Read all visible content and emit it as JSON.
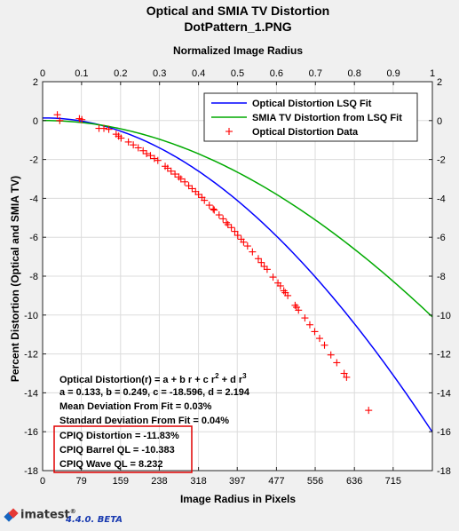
{
  "chart_data": {
    "type": "line",
    "title": "Optical and SMIA TV Distortion",
    "subtitle": "DotPattern_1.PNG",
    "xlabel": "Image Radius in Pixels",
    "ylabel": "Percent Distortion (Optical and SMIA TV)",
    "top_xlabel": "Normalized Image Radius",
    "xlim": [
      0,
      795
    ],
    "ylim": [
      -18,
      2
    ],
    "top_xlim": [
      0,
      1
    ],
    "x_ticks": [
      0,
      79,
      159,
      238,
      318,
      397,
      477,
      556,
      636,
      715
    ],
    "top_x_ticks": [
      "0",
      "0.1",
      "0.2",
      "0.3",
      "0.4",
      "0.5",
      "0.6",
      "0.7",
      "0.8",
      "0.9",
      "1"
    ],
    "y_ticks": [
      2,
      0,
      -2,
      -4,
      -6,
      -8,
      -10,
      -12,
      -14,
      -16,
      -18
    ],
    "grid": true,
    "legend_position": "top-right",
    "fit_coefficients": {
      "a": 0.133,
      "b": 0.249,
      "c": -18.596,
      "d": 2.194
    },
    "series": [
      {
        "name": "Optical Distortion LSQ Fit",
        "color": "#0000ff",
        "kind": "line",
        "model": "optical"
      },
      {
        "name": "SMIA TV Distortion from LSQ Fit",
        "color": "#00aa00",
        "kind": "line",
        "model": "smia"
      },
      {
        "name": "Optical Distortion Data",
        "color": "#ff0000",
        "kind": "marker",
        "marker": "+",
        "x": [
          30,
          35,
          75,
          80,
          115,
          125,
          135,
          150,
          155,
          160,
          175,
          185,
          195,
          205,
          212,
          220,
          228,
          235,
          250,
          255,
          262,
          270,
          278,
          282,
          290,
          298,
          305,
          312,
          318,
          325,
          330,
          340,
          348,
          350,
          360,
          368,
          375,
          378,
          385,
          392,
          398,
          405,
          410,
          418,
          428,
          440,
          446,
          452,
          458,
          470,
          480,
          485,
          492,
          495,
          500,
          515,
          518,
          522,
          535,
          545,
          555,
          565,
          575,
          588,
          600,
          615,
          620,
          665
        ],
        "y": [
          0.3,
          0.0,
          0.1,
          0.05,
          -0.4,
          -0.4,
          -0.45,
          -0.7,
          -0.8,
          -0.9,
          -1.1,
          -1.25,
          -1.4,
          -1.55,
          -1.7,
          -1.8,
          -1.95,
          -2.05,
          -2.35,
          -2.45,
          -2.6,
          -2.75,
          -2.9,
          -3.0,
          -3.15,
          -3.35,
          -3.5,
          -3.65,
          -3.8,
          -3.95,
          -4.1,
          -4.35,
          -4.55,
          -4.6,
          -4.85,
          -5.05,
          -5.25,
          -5.35,
          -5.5,
          -5.7,
          -5.9,
          -6.1,
          -6.25,
          -6.45,
          -6.75,
          -7.1,
          -7.3,
          -7.5,
          -7.65,
          -8.05,
          -8.35,
          -8.5,
          -8.75,
          -8.85,
          -9.0,
          -9.5,
          -9.6,
          -9.75,
          -10.15,
          -10.5,
          -10.85,
          -11.2,
          -11.55,
          -12.05,
          -12.45,
          -13.0,
          -13.2,
          -14.9
        ]
      }
    ],
    "annotations": {
      "formula_prefix": "Optical Distortion(r) = a + b r + c r",
      "formula_exp1": "2",
      "formula_mid": " + d r",
      "formula_exp2": "3",
      "coefficients_line": "a = 0.133, b = 0.249, c = -18.596, d = 2.194",
      "mean_dev": "Mean Deviation From Fit = 0.03%",
      "std_dev": "Standard Deviation From Fit = 0.04%",
      "cpiq_distortion": "CPIQ Distortion = -11.83%",
      "cpiq_barrel": "CPIQ Barrel QL = -10.383",
      "cpiq_wave": "CPIQ Wave QL = 8.232",
      "highlight_color": "#e00000"
    }
  },
  "footer": {
    "logo": "imatest",
    "logo_mark": "®",
    "version": "4.4.0. BETA"
  }
}
